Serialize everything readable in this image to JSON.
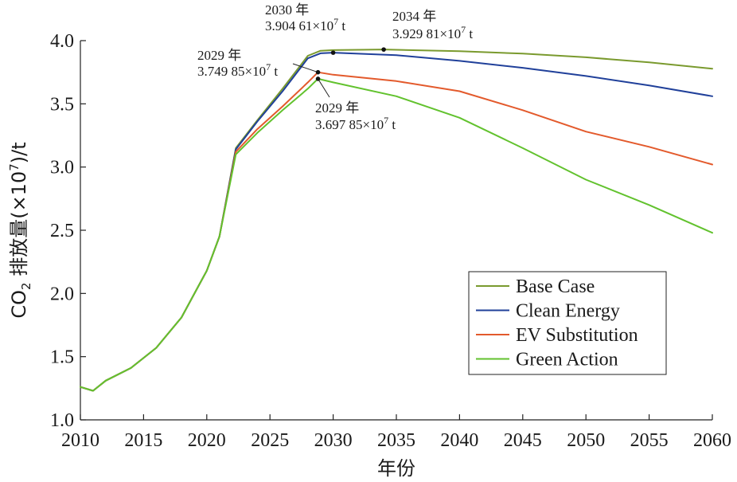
{
  "chart_data": {
    "type": "line",
    "xlabel": "年份",
    "ylabel_main": "CO",
    "ylabel_sub": "2",
    "ylabel_rest": " 排放量(×10",
    "ylabel_sup": "7",
    "ylabel_tail": ")/t",
    "xlim": [
      2010,
      2060
    ],
    "ylim": [
      1.0,
      4.0
    ],
    "xticks": [
      "2010",
      "2015",
      "2020",
      "2025",
      "2030",
      "2035",
      "2040",
      "2045",
      "2050",
      "2055",
      "2060"
    ],
    "yticks": [
      "1.0",
      "1.5",
      "2.0",
      "2.5",
      "3.0",
      "3.5",
      "4.0"
    ],
    "grid": false,
    "legend_position": "lower-right",
    "series": [
      {
        "name": "Base Case",
        "color": "#7a9a2e",
        "x": [
          2010,
          2011,
          2012,
          2014,
          2016,
          2018,
          2020,
          2021,
          2022.3,
          2024,
          2026,
          2028,
          2029,
          2030,
          2034,
          2040,
          2045,
          2050,
          2055,
          2060
        ],
        "y": [
          1.26,
          1.23,
          1.31,
          1.41,
          1.57,
          1.81,
          2.18,
          2.45,
          3.15,
          3.37,
          3.62,
          3.88,
          3.92,
          3.925,
          3.9298,
          3.916,
          3.897,
          3.868,
          3.828,
          3.778
        ]
      },
      {
        "name": "Clean Energy",
        "color": "#20409a",
        "x": [
          2010,
          2011,
          2012,
          2014,
          2016,
          2018,
          2020,
          2021,
          2022.3,
          2024,
          2026,
          2028,
          2029,
          2030,
          2035,
          2040,
          2045,
          2050,
          2055,
          2060
        ],
        "y": [
          1.26,
          1.23,
          1.31,
          1.41,
          1.57,
          1.81,
          2.18,
          2.45,
          3.14,
          3.36,
          3.6,
          3.86,
          3.9,
          3.9046,
          3.885,
          3.84,
          3.785,
          3.72,
          3.645,
          3.56
        ]
      },
      {
        "name": "EV Substitution",
        "color": "#e35a2c",
        "x": [
          2010,
          2011,
          2012,
          2014,
          2016,
          2018,
          2020,
          2021,
          2022.3,
          2024,
          2026,
          2028,
          2028.8,
          2030,
          2035,
          2040,
          2045,
          2050,
          2055,
          2060
        ],
        "y": [
          1.26,
          1.23,
          1.31,
          1.41,
          1.57,
          1.81,
          2.18,
          2.45,
          3.12,
          3.3,
          3.48,
          3.67,
          3.7499,
          3.73,
          3.68,
          3.6,
          3.45,
          3.28,
          3.16,
          3.02
        ]
      },
      {
        "name": "Green Action",
        "color": "#62c22e",
        "x": [
          2010,
          2011,
          2012,
          2014,
          2016,
          2018,
          2020,
          2021,
          2022.3,
          2024,
          2026,
          2028,
          2028.8,
          2030,
          2035,
          2040,
          2045,
          2050,
          2055,
          2060
        ],
        "y": [
          1.26,
          1.23,
          1.31,
          1.41,
          1.57,
          1.81,
          2.18,
          2.45,
          3.1,
          3.27,
          3.45,
          3.62,
          3.6979,
          3.67,
          3.56,
          3.39,
          3.15,
          2.9,
          2.7,
          2.48
        ]
      }
    ],
    "annotations": [
      {
        "year_line": "2030 年",
        "value_main": "3.904 61×10",
        "value_sup": "7",
        "value_unit": " t",
        "point_x": 2030,
        "point_y": 3.9046,
        "leader": false
      },
      {
        "year_line": "2034 年",
        "value_main": "3.929 81×10",
        "value_sup": "7",
        "value_unit": " t",
        "point_x": 2034,
        "point_y": 3.9298,
        "leader": false
      },
      {
        "year_line": "2029 年",
        "value_main": "3.749 85×10",
        "value_sup": "7",
        "value_unit": " t",
        "point_x": 2028.8,
        "point_y": 3.7499,
        "leader": true
      },
      {
        "year_line": "2029 年",
        "value_main": "3.697 85×10",
        "value_sup": "7",
        "value_unit": " t",
        "point_x": 2028.8,
        "point_y": 3.6979,
        "leader": true
      }
    ]
  }
}
